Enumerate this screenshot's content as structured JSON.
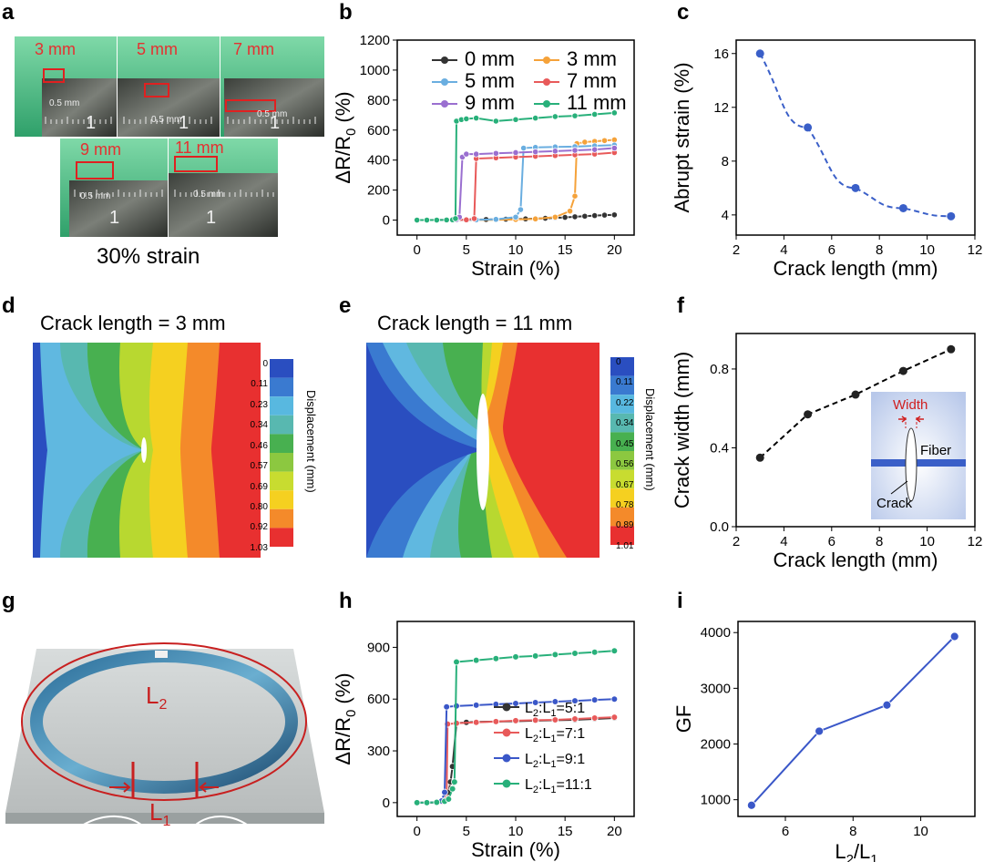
{
  "panels": {
    "a": {
      "letter": "a",
      "photos": [
        {
          "label": "3 mm",
          "ruler": "0.5 mm",
          "num": "1"
        },
        {
          "label": "5 mm",
          "ruler": "0.5 mm",
          "num": "1"
        },
        {
          "label": "7 mm",
          "ruler": "0.5 mm",
          "num": "1"
        },
        {
          "label": "9 mm",
          "ruler": "0.5 mm",
          "num": "1"
        },
        {
          "label": "11 mm",
          "ruler": "0.5 mm",
          "num": "1"
        }
      ],
      "caption": "30% strain"
    },
    "b": {
      "letter": "b"
    },
    "c": {
      "letter": "c"
    },
    "d": {
      "letter": "d",
      "title": "Crack length = 3 mm",
      "scale": [
        "0",
        "0.11",
        "0.23",
        "0.34",
        "0.46",
        "0.57",
        "0.69",
        "0.80",
        "0.92",
        "1.03"
      ],
      "scale_label": "Displacement  (mm)"
    },
    "e": {
      "letter": "e",
      "title": "Crack length = 11 mm",
      "scale": [
        "0",
        "0.11",
        "0.22",
        "0.34",
        "0.45",
        "0.56",
        "0.67",
        "0.78",
        "0.89",
        "1.01"
      ],
      "scale_label": "Displacement  (mm)"
    },
    "f": {
      "letter": "f",
      "inset": {
        "width": "Width",
        "fiber": "Fiber",
        "crack": "Crack"
      }
    },
    "g": {
      "letter": "g",
      "l2": "L",
      "l2_sub": "2",
      "l1": "L",
      "l1_sub": "1"
    },
    "h": {
      "letter": "h"
    },
    "i": {
      "letter": "i"
    }
  },
  "colors": {
    "black": "#333333",
    "orange": "#f5a23a",
    "lightblue": "#6aaee0",
    "red": "#e85a5a",
    "purple": "#9a6fd0",
    "green": "#28b07a",
    "blue": "#3a57c8",
    "dashblue": "#3a5fc8"
  },
  "chart_data": [
    {
      "id": "b",
      "type": "line",
      "xlabel": "Strain (%)",
      "ylabel": "ΔR/R",
      "ylabel_sub": "0",
      "ylabel_unit": " (%)",
      "xlim": [
        -2,
        22
      ],
      "ylim": [
        -100,
        1200
      ],
      "xticks": [
        0,
        5,
        10,
        15,
        20
      ],
      "yticks": [
        0,
        200,
        400,
        600,
        800,
        1000,
        1200
      ],
      "legend": "top",
      "series": [
        {
          "name": "0 mm",
          "color": "#333333",
          "x": [
            0,
            1,
            2,
            3,
            4,
            5,
            6,
            7,
            8,
            9,
            10,
            11,
            12,
            13,
            14,
            15,
            16,
            17,
            18,
            19,
            20
          ],
          "y": [
            0,
            0,
            1,
            1,
            2,
            2,
            3,
            4,
            5,
            6,
            7,
            8,
            10,
            12,
            15,
            18,
            22,
            26,
            30,
            33,
            35
          ]
        },
        {
          "name": "3 mm",
          "color": "#f5a23a",
          "x": [
            0,
            2,
            4,
            6,
            8,
            10,
            12,
            14,
            15.5,
            16,
            16.2,
            17,
            18,
            19,
            20
          ],
          "y": [
            0,
            0,
            0,
            1,
            2,
            4,
            8,
            20,
            60,
            160,
            510,
            520,
            525,
            530,
            535
          ]
        },
        {
          "name": "5 mm",
          "color": "#6aaee0",
          "x": [
            0,
            2,
            4,
            6,
            8,
            10,
            10.5,
            10.8,
            12,
            14,
            16,
            18,
            20
          ],
          "y": [
            0,
            0,
            0,
            2,
            5,
            20,
            70,
            480,
            485,
            488,
            490,
            495,
            500
          ]
        },
        {
          "name": "7 mm",
          "color": "#e85a5a",
          "x": [
            0,
            2,
            4,
            5,
            5.8,
            6.0,
            8,
            10,
            12,
            14,
            16,
            18,
            20
          ],
          "y": [
            0,
            0,
            0,
            2,
            10,
            410,
            415,
            420,
            425,
            430,
            435,
            440,
            450
          ]
        },
        {
          "name": "9 mm",
          "color": "#9a6fd0",
          "x": [
            0,
            1,
            2,
            3,
            4,
            4.3,
            4.6,
            5,
            6,
            8,
            10,
            12,
            14,
            16,
            18,
            20
          ],
          "y": [
            0,
            0,
            0,
            1,
            3,
            20,
            420,
            440,
            440,
            445,
            450,
            455,
            460,
            465,
            470,
            480
          ]
        },
        {
          "name": "11 mm",
          "color": "#28b07a",
          "x": [
            0,
            1,
            2,
            3,
            3.6,
            3.9,
            4.0,
            4.5,
            5,
            6,
            8,
            10,
            12,
            14,
            16,
            18,
            20
          ],
          "y": [
            0,
            0,
            0,
            1,
            2,
            10,
            660,
            670,
            675,
            680,
            660,
            670,
            680,
            690,
            695,
            705,
            715
          ]
        }
      ]
    },
    {
      "id": "c",
      "type": "scatter",
      "xlabel": "Crack length (mm)",
      "ylabel": "Abrupt strain (%)",
      "xlim": [
        2,
        12
      ],
      "ylim": [
        2.5,
        17
      ],
      "xticks": [
        2,
        4,
        6,
        8,
        10,
        12
      ],
      "yticks": [
        4,
        8,
        12,
        16
      ],
      "x": [
        3,
        5,
        7,
        9,
        11
      ],
      "y": [
        16,
        10.5,
        6,
        4.5,
        3.9
      ]
    },
    {
      "id": "f",
      "type": "scatter",
      "xlabel": "Crack length (mm)",
      "ylabel": "Crack width (mm)",
      "xlim": [
        2,
        12
      ],
      "ylim": [
        0,
        0.98
      ],
      "xticks": [
        2,
        4,
        6,
        8,
        10,
        12
      ],
      "yticks": [
        0.0,
        0.4,
        0.8
      ],
      "x": [
        3,
        5,
        7,
        9,
        11
      ],
      "y": [
        0.35,
        0.57,
        0.67,
        0.79,
        0.9
      ]
    },
    {
      "id": "h",
      "type": "line",
      "xlabel": "Strain (%)",
      "ylabel": "ΔR/R",
      "ylabel_sub": "0",
      "ylabel_unit": " (%)",
      "xlim": [
        -2,
        22
      ],
      "ylim": [
        -80,
        1050
      ],
      "xticks": [
        0,
        5,
        10,
        15,
        20
      ],
      "yticks": [
        0,
        300,
        600,
        900
      ],
      "legend": "bottom-right",
      "series": [
        {
          "name": "L2:L1=5:1",
          "color": "#333333",
          "x": [
            0,
            1,
            2,
            2.5,
            3,
            3.2,
            3.4,
            3.6,
            4,
            5,
            6,
            8,
            10,
            12,
            14,
            16,
            18,
            20
          ],
          "y": [
            0,
            0,
            2,
            5,
            30,
            60,
            120,
            210,
            460,
            465,
            468,
            470,
            472,
            475,
            478,
            480,
            485,
            490
          ]
        },
        {
          "name": "L2:L1=7:1",
          "color": "#e85a5a",
          "x": [
            0,
            1,
            2,
            2.5,
            3,
            3.1,
            4,
            6,
            8,
            10,
            12,
            14,
            16,
            18,
            20
          ],
          "y": [
            0,
            0,
            2,
            5,
            20,
            455,
            460,
            465,
            470,
            475,
            478,
            480,
            485,
            490,
            495
          ]
        },
        {
          "name": "L2:L1=9:1",
          "color": "#3a57c8",
          "x": [
            0,
            1,
            2,
            2.5,
            2.8,
            3.0,
            4,
            6,
            8,
            10,
            12,
            14,
            16,
            18,
            20
          ],
          "y": [
            0,
            0,
            2,
            10,
            60,
            555,
            560,
            565,
            570,
            575,
            580,
            585,
            590,
            595,
            600
          ]
        },
        {
          "name": "L2:L1=11:1",
          "color": "#28b07a",
          "x": [
            0,
            1,
            2,
            2.8,
            3.2,
            3.6,
            3.8,
            4,
            6,
            8,
            10,
            12,
            14,
            16,
            18,
            20
          ],
          "y": [
            0,
            0,
            2,
            8,
            20,
            80,
            120,
            815,
            825,
            835,
            845,
            850,
            858,
            865,
            872,
            880
          ]
        }
      ]
    },
    {
      "id": "i",
      "type": "line",
      "xlabel": "L",
      "xlabel_sub2": "2",
      "xlabel_mid": "/L",
      "xlabel_sub1": "1",
      "ylabel": "GF",
      "xlim": [
        4.6,
        11.6
      ],
      "ylim": [
        700,
        4200
      ],
      "xticks": [
        6,
        8,
        10
      ],
      "yticks": [
        1000,
        2000,
        3000,
        4000
      ],
      "x": [
        5,
        7,
        9,
        11
      ],
      "y": [
        900,
        2230,
        2700,
        3930
      ]
    }
  ]
}
